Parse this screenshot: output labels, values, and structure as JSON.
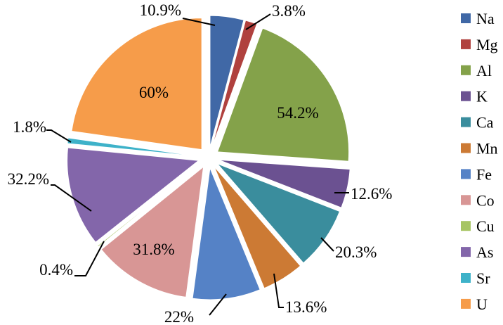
{
  "chart_data": {
    "type": "pie",
    "exploded": true,
    "legend_position": "right",
    "slices": [
      {
        "name": "Na",
        "label": "10.9%",
        "value": 10.9,
        "color": "#4068A6"
      },
      {
        "name": "Mg",
        "label": "3.8%",
        "value": 3.8,
        "color": "#B0413E"
      },
      {
        "name": "Al",
        "label": "54.2%",
        "value": 54.2,
        "color": "#84A24A"
      },
      {
        "name": "K",
        "label": "12.6%",
        "value": 12.6,
        "color": "#6B5191"
      },
      {
        "name": "Ca",
        "label": "20.3%",
        "value": 20.3,
        "color": "#3A8D9D"
      },
      {
        "name": "Mn",
        "label": "13.6%",
        "value": 13.6,
        "color": "#CC7A34"
      },
      {
        "name": "Fe",
        "label": "22%",
        "value": 22,
        "color": "#5582C6"
      },
      {
        "name": "Co",
        "label": "31.8%",
        "value": 31.8,
        "color": "#D89695"
      },
      {
        "name": "Cu",
        "label": "0.4%",
        "value": 0.4,
        "color": "#A7C564"
      },
      {
        "name": "As",
        "label": "32.2%",
        "value": 32.2,
        "color": "#8366AA"
      },
      {
        "name": "Sr",
        "label": "1.8%",
        "value": 1.8,
        "color": "#3EB2C9"
      },
      {
        "name": "U",
        "label": "60%",
        "value": 60,
        "color": "#F69C4A"
      }
    ]
  }
}
